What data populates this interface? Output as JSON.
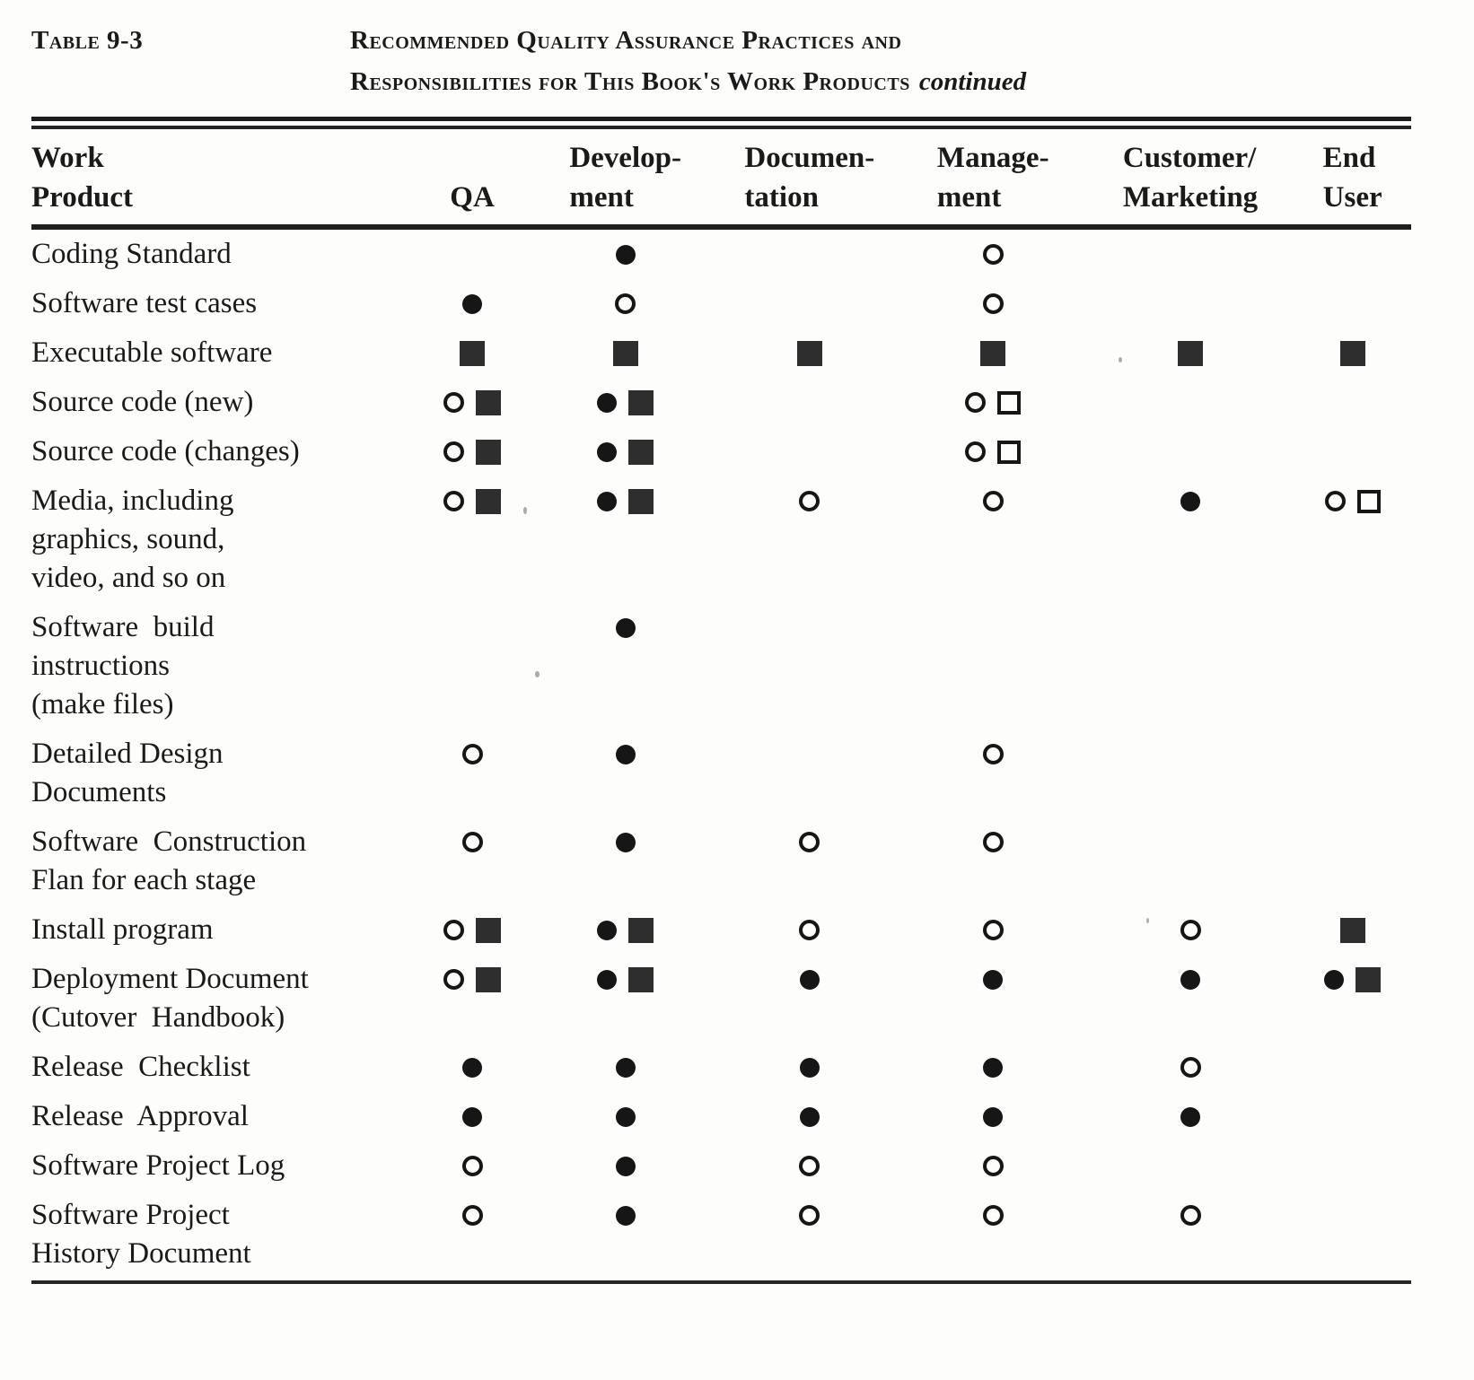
{
  "colors": {
    "ink": "#1a1a1a",
    "paper": "#fdfdfb",
    "square_fill": "#2e2e2e"
  },
  "header": {
    "table_label": "Table 9-3",
    "title_line1": "Recommended Quality Assurance Practices and",
    "title_line2": "Responsibilities for This Book's Work Products",
    "continued_note": "continued"
  },
  "table": {
    "columns": [
      {
        "id": "work_product",
        "label_lines": [
          "Work",
          "Product"
        ]
      },
      {
        "id": "qa",
        "label_lines": [
          "QA"
        ]
      },
      {
        "id": "development",
        "label_lines": [
          "Develop-",
          "ment"
        ]
      },
      {
        "id": "documentation",
        "label_lines": [
          "Documen-",
          "tation"
        ]
      },
      {
        "id": "management",
        "label_lines": [
          "Manage-",
          "ment"
        ]
      },
      {
        "id": "customer_marketing",
        "label_lines": [
          "Customer/",
          "Marketing"
        ]
      },
      {
        "id": "end_user",
        "label_lines": [
          "End",
          "User"
        ]
      }
    ],
    "symbol_legend": {
      "filled-circle": "●",
      "open-circle": "○",
      "filled-square": "■",
      "open-square": "□"
    },
    "rows": [
      {
        "label_lines": [
          "Coding Standard"
        ],
        "cells": {
          "development": [
            "filled-circle"
          ],
          "management": [
            "open-circle"
          ]
        }
      },
      {
        "label_lines": [
          "Software test cases"
        ],
        "cells": {
          "qa": [
            "filled-circle"
          ],
          "development": [
            "open-circle"
          ],
          "management": [
            "open-circle"
          ]
        }
      },
      {
        "label_lines": [
          "Executable software"
        ],
        "cells": {
          "qa": [
            "filled-square"
          ],
          "development": [
            "filled-square"
          ],
          "documentation": [
            "filled-square"
          ],
          "management": [
            "filled-square"
          ],
          "customer_marketing": [
            "filled-square"
          ],
          "end_user": [
            "filled-square"
          ]
        }
      },
      {
        "label_lines": [
          "Source code (new)"
        ],
        "cells": {
          "qa": [
            "open-circle",
            "filled-square"
          ],
          "development": [
            "filled-circle",
            "filled-square"
          ],
          "management": [
            "open-circle",
            "open-square"
          ]
        }
      },
      {
        "label_lines": [
          "Source code (changes)"
        ],
        "cells": {
          "qa": [
            "open-circle",
            "filled-square"
          ],
          "development": [
            "filled-circle",
            "filled-square"
          ],
          "management": [
            "open-circle",
            "open-square"
          ]
        }
      },
      {
        "label_lines": [
          "Media, including",
          "graphics, sound,",
          "video, and so on"
        ],
        "cells": {
          "qa": [
            "open-circle",
            "filled-square"
          ],
          "development": [
            "filled-circle",
            "filled-square"
          ],
          "documentation": [
            "open-circle"
          ],
          "management": [
            "open-circle"
          ],
          "customer_marketing": [
            "filled-circle"
          ],
          "end_user": [
            "open-circle",
            "open-square"
          ]
        }
      },
      {
        "label_lines": [
          "Software  build",
          "instructions",
          "(make files)"
        ],
        "cells": {
          "development": [
            "filled-circle"
          ]
        }
      },
      {
        "label_lines": [
          "Detailed Design",
          "Documents"
        ],
        "cells": {
          "qa": [
            "open-circle"
          ],
          "development": [
            "filled-circle"
          ],
          "management": [
            "open-circle"
          ]
        }
      },
      {
        "label_lines": [
          "Software  Construction",
          "Flan for each stage"
        ],
        "cells": {
          "qa": [
            "open-circle"
          ],
          "development": [
            "filled-circle"
          ],
          "documentation": [
            "open-circle"
          ],
          "management": [
            "open-circle"
          ]
        }
      },
      {
        "label_lines": [
          "Install program"
        ],
        "cells": {
          "qa": [
            "open-circle",
            "filled-square"
          ],
          "development": [
            "filled-circle",
            "filled-square"
          ],
          "documentation": [
            "open-circle"
          ],
          "management": [
            "open-circle"
          ],
          "customer_marketing": [
            "open-circle"
          ],
          "end_user": [
            "filled-square"
          ]
        }
      },
      {
        "label_lines": [
          "Deployment Document",
          "(Cutover  Handbook)"
        ],
        "cells": {
          "qa": [
            "open-circle",
            "filled-square"
          ],
          "development": [
            "filled-circle",
            "filled-square"
          ],
          "documentation": [
            "filled-circle"
          ],
          "management": [
            "filled-circle"
          ],
          "customer_marketing": [
            "filled-circle"
          ],
          "end_user": [
            "filled-circle",
            "filled-square"
          ]
        }
      },
      {
        "label_lines": [
          "Release  Checklist"
        ],
        "cells": {
          "qa": [
            "filled-circle"
          ],
          "development": [
            "filled-circle"
          ],
          "documentation": [
            "filled-circle"
          ],
          "management": [
            "filled-circle"
          ],
          "customer_marketing": [
            "open-circle"
          ]
        }
      },
      {
        "label_lines": [
          "Release  Approval"
        ],
        "cells": {
          "qa": [
            "filled-circle"
          ],
          "development": [
            "filled-circle"
          ],
          "documentation": [
            "filled-circle"
          ],
          "management": [
            "filled-circle"
          ],
          "customer_marketing": [
            "filled-circle"
          ]
        }
      },
      {
        "label_lines": [
          "Software Project Log"
        ],
        "cells": {
          "qa": [
            "open-circle"
          ],
          "development": [
            "filled-circle"
          ],
          "documentation": [
            "open-circle"
          ],
          "management": [
            "open-circle"
          ]
        }
      },
      {
        "label_lines": [
          "Software Project",
          "History Document"
        ],
        "cells": {
          "qa": [
            "open-circle"
          ],
          "development": [
            "filled-circle"
          ],
          "documentation": [
            "open-circle"
          ],
          "management": [
            "open-circle"
          ],
          "customer_marketing": [
            "open-circle"
          ]
        }
      }
    ]
  }
}
